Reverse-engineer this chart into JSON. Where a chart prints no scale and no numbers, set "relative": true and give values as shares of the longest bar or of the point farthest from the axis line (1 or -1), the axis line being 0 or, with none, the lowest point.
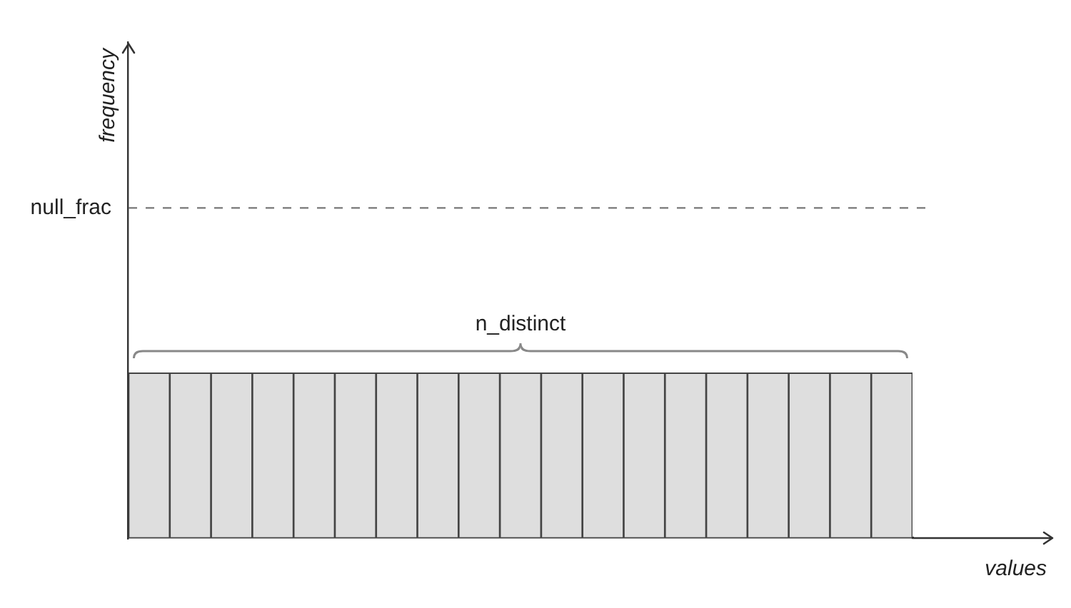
{
  "chart_data": {
    "type": "bar",
    "xlabel": "values",
    "categories": [
      null,
      null,
      null,
      null,
      null,
      null,
      null,
      null,
      null,
      null,
      null,
      null,
      null,
      null,
      null,
      null,
      null,
      null,
      null
    ],
    "values": [
      1,
      1,
      1,
      1,
      1,
      1,
      1,
      1,
      1,
      1,
      1,
      1,
      1,
      1,
      1,
      1,
      1,
      1,
      1
    ],
    "color": "#dedede",
    "relative": true,
    "ref_lines": [
      {
        "axis": "y",
        "value": 2,
        "label": "null_frac",
        "color": "#777777",
        "line_style": "dashed"
      }
    ],
    "annotations": [
      "frequency",
      "n_distinct"
    ],
    "legend": false,
    "grid": false
  }
}
